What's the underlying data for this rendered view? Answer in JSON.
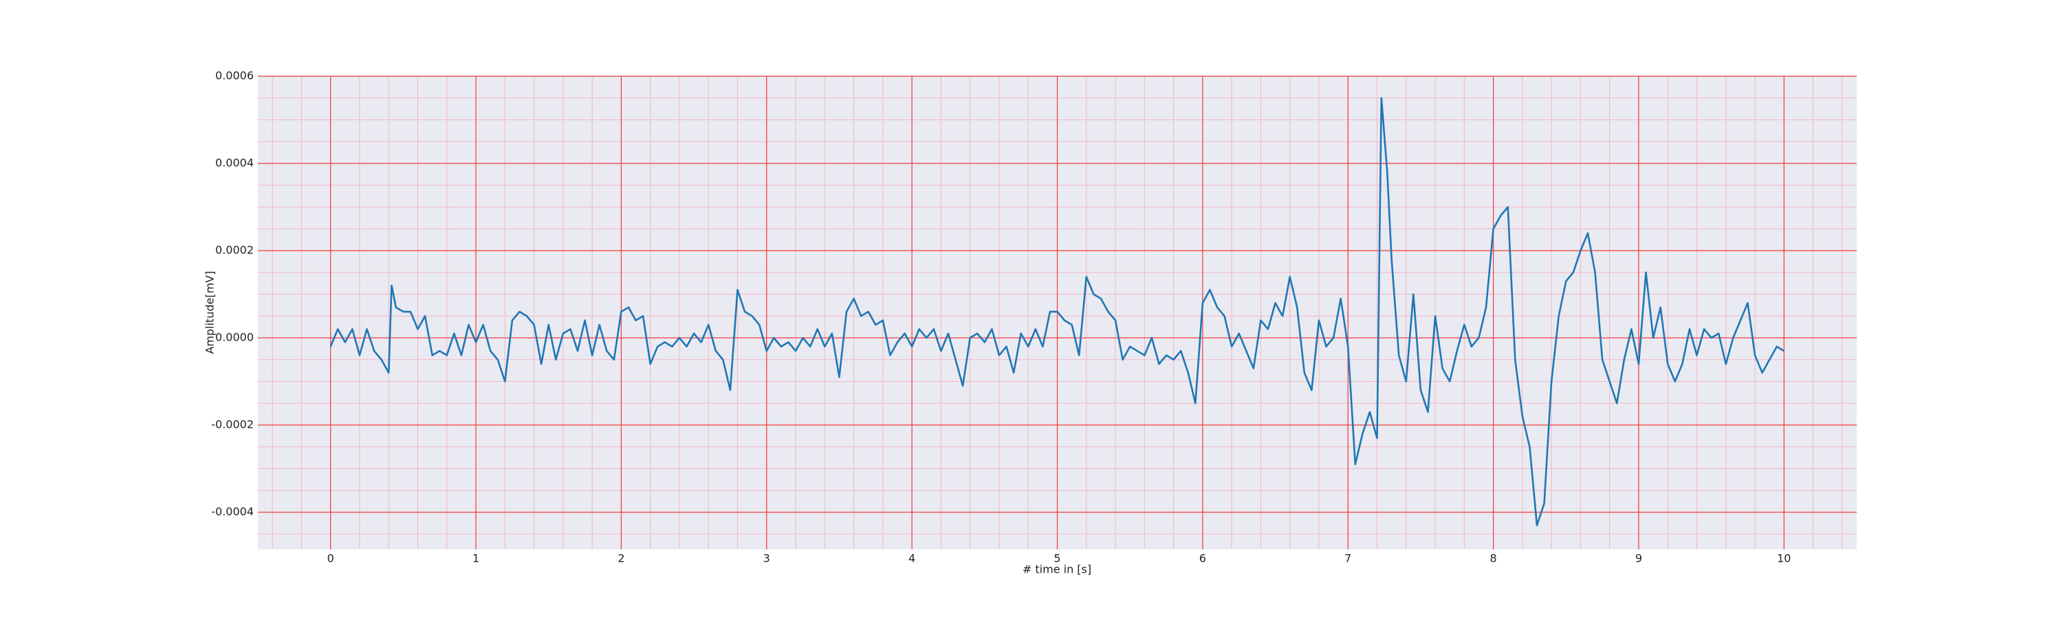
{
  "chart_data": {
    "type": "line",
    "xlabel": "# time in [s]",
    "ylabel": "Amplitude[mV]",
    "x": [
      0,
      0.05,
      0.1,
      0.15,
      0.2,
      0.25,
      0.3,
      0.35,
      0.4,
      0.42,
      0.45,
      0.5,
      0.55,
      0.6,
      0.65,
      0.7,
      0.75,
      0.8,
      0.85,
      0.9,
      0.95,
      1,
      1.05,
      1.1,
      1.15,
      1.2,
      1.25,
      1.3,
      1.35,
      1.4,
      1.45,
      1.5,
      1.55,
      1.6,
      1.65,
      1.7,
      1.75,
      1.8,
      1.85,
      1.9,
      1.95,
      2,
      2.05,
      2.1,
      2.15,
      2.2,
      2.25,
      2.3,
      2.35,
      2.4,
      2.45,
      2.5,
      2.55,
      2.6,
      2.65,
      2.7,
      2.75,
      2.8,
      2.85,
      2.9,
      2.95,
      3,
      3.05,
      3.1,
      3.15,
      3.2,
      3.25,
      3.3,
      3.35,
      3.4,
      3.45,
      3.5,
      3.55,
      3.6,
      3.65,
      3.7,
      3.75,
      3.8,
      3.85,
      3.9,
      3.95,
      4,
      4.05,
      4.1,
      4.15,
      4.2,
      4.25,
      4.3,
      4.35,
      4.4,
      4.45,
      4.5,
      4.55,
      4.6,
      4.65,
      4.7,
      4.75,
      4.8,
      4.85,
      4.9,
      4.95,
      5,
      5.05,
      5.1,
      5.15,
      5.2,
      5.25,
      5.3,
      5.35,
      5.4,
      5.45,
      5.5,
      5.55,
      5.6,
      5.65,
      5.7,
      5.75,
      5.8,
      5.85,
      5.9,
      5.95,
      6,
      6.05,
      6.1,
      6.15,
      6.2,
      6.25,
      6.3,
      6.35,
      6.4,
      6.45,
      6.5,
      6.55,
      6.6,
      6.65,
      6.7,
      6.75,
      6.8,
      6.85,
      6.9,
      6.95,
      7,
      7.05,
      7.1,
      7.15,
      7.2,
      7.23,
      7.27,
      7.3,
      7.35,
      7.4,
      7.45,
      7.5,
      7.55,
      7.6,
      7.65,
      7.7,
      7.75,
      7.8,
      7.85,
      7.9,
      7.95,
      8,
      8.05,
      8.1,
      8.15,
      8.2,
      8.25,
      8.3,
      8.35,
      8.4,
      8.45,
      8.5,
      8.55,
      8.6,
      8.65,
      8.7,
      8.75,
      8.8,
      8.85,
      8.9,
      8.95,
      9,
      9.05,
      9.1,
      9.15,
      9.2,
      9.25,
      9.3,
      9.35,
      9.4,
      9.45,
      9.5,
      9.55,
      9.6,
      9.65,
      9.7,
      9.75,
      9.8,
      9.85,
      9.9,
      9.95,
      10
    ],
    "values": [
      -2e-05,
      2e-05,
      -1e-05,
      2e-05,
      -4e-05,
      2e-05,
      -3e-05,
      -5e-05,
      -8e-05,
      0.00012,
      7e-05,
      6e-05,
      6e-05,
      2e-05,
      5e-05,
      -4e-05,
      -3e-05,
      -4e-05,
      1e-05,
      -4e-05,
      3e-05,
      -1e-05,
      3e-05,
      -3e-05,
      -5e-05,
      -0.0001,
      4e-05,
      6e-05,
      5e-05,
      3e-05,
      -6e-05,
      3e-05,
      -5e-05,
      1e-05,
      2e-05,
      -3e-05,
      4e-05,
      -4e-05,
      3e-05,
      -3e-05,
      -5e-05,
      6e-05,
      7e-05,
      4e-05,
      5e-05,
      -6e-05,
      -2e-05,
      -1e-05,
      -2e-05,
      0,
      -2e-05,
      1e-05,
      -1e-05,
      3e-05,
      -3e-05,
      -5e-05,
      -0.00012,
      0.00011,
      6e-05,
      5e-05,
      3e-05,
      -3e-05,
      0,
      -2e-05,
      -1e-05,
      -3e-05,
      0,
      -2e-05,
      2e-05,
      -2e-05,
      1e-05,
      -9e-05,
      6e-05,
      9e-05,
      5e-05,
      6e-05,
      3e-05,
      4e-05,
      -4e-05,
      -1e-05,
      1e-05,
      -2e-05,
      2e-05,
      0,
      2e-05,
      -3e-05,
      1e-05,
      -5e-05,
      -0.00011,
      0,
      1e-05,
      -1e-05,
      2e-05,
      -4e-05,
      -2e-05,
      -8e-05,
      1e-05,
      -2e-05,
      2e-05,
      -2e-05,
      6e-05,
      6e-05,
      4e-05,
      3e-05,
      -4e-05,
      0.00014,
      0.0001,
      9e-05,
      6e-05,
      4e-05,
      -5e-05,
      -2e-05,
      -3e-05,
      -4e-05,
      0,
      -6e-05,
      -4e-05,
      -5e-05,
      -3e-05,
      -8e-05,
      -0.00015,
      8e-05,
      0.00011,
      7e-05,
      5e-05,
      -2e-05,
      1e-05,
      -3e-05,
      -7e-05,
      4e-05,
      2e-05,
      8e-05,
      5e-05,
      0.00014,
      7e-05,
      -8e-05,
      -0.00012,
      4e-05,
      -2e-05,
      0,
      9e-05,
      -2e-05,
      -0.00029,
      -0.00022,
      -0.00017,
      -0.00023,
      0.00055,
      0.00038,
      0.00018,
      -4e-05,
      -0.0001,
      0.0001,
      -0.00012,
      -0.00017,
      5e-05,
      -7e-05,
      -0.0001,
      -3e-05,
      3e-05,
      -2e-05,
      0,
      7e-05,
      0.00025,
      0.00028,
      0.0003,
      -5e-05,
      -0.00018,
      -0.00025,
      -0.00043,
      -0.00038,
      -0.0001,
      5e-05,
      0.00013,
      0.00015,
      0.0002,
      0.00024,
      0.00015,
      -5e-05,
      -0.0001,
      -0.00015,
      -5e-05,
      2e-05,
      -6e-05,
      0.00015,
      0,
      7e-05,
      -6e-05,
      -0.0001,
      -6e-05,
      2e-05,
      -4e-05,
      2e-05,
      0,
      1e-05,
      -6e-05,
      0,
      4e-05,
      8e-05,
      -4e-05,
      -8e-05,
      -5e-05,
      -2e-05,
      -3e-05
    ],
    "color": "#1f77b4",
    "xlim": [
      -0.5,
      10.5
    ],
    "xticks": [
      0,
      1,
      2,
      3,
      4,
      5,
      6,
      7,
      8,
      9,
      10
    ],
    "ylim": [
      -0.000485,
      0.0006
    ],
    "yticks": [
      -0.0004,
      -0.0002,
      {
        "value": 0,
        "label": "0.0000"
      },
      0.0002,
      0.0004,
      0.0006
    ],
    "grid": true,
    "minor_grid": true
  }
}
